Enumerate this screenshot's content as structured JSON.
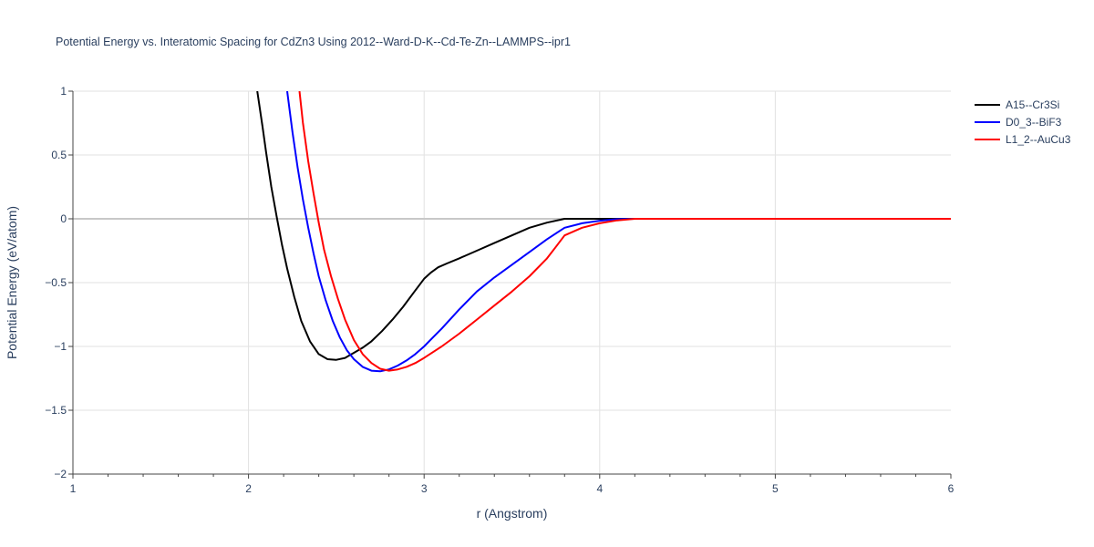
{
  "chart_data": {
    "type": "line",
    "title": "Potential Energy vs. Interatomic Spacing for CdZn3 Using 2012--Ward-D-K--Cd-Te-Zn--LAMMPS--ipr1",
    "xlabel": "r (Angstrom)",
    "ylabel": "Potential Energy (eV/atom)",
    "xlim": [
      1,
      6
    ],
    "ylim": [
      -2,
      1
    ],
    "x_ticks": [
      "1",
      "2",
      "3",
      "4",
      "5",
      "6"
    ],
    "y_ticks": [
      "1",
      "0.5",
      "0",
      "−0.5",
      "−1",
      "−1.5",
      "−2"
    ],
    "grid": true,
    "legend_position": "top-right",
    "series": [
      {
        "name": "A15--Cr3Si",
        "color": "#000000",
        "x": [
          2.05,
          2.08,
          2.1,
          2.13,
          2.16,
          2.19,
          2.22,
          2.26,
          2.3,
          2.35,
          2.4,
          2.45,
          2.5,
          2.55,
          2.6,
          2.65,
          2.7,
          2.76,
          2.82,
          2.88,
          2.94,
          3.0,
          3.04,
          3.08,
          3.13,
          3.2,
          3.3,
          3.4,
          3.5,
          3.6,
          3.7,
          3.8,
          3.86,
          3.95,
          4.05,
          4.2,
          6.0
        ],
        "y": [
          1.0,
          0.72,
          0.52,
          0.25,
          0.02,
          -0.2,
          -0.39,
          -0.61,
          -0.8,
          -0.96,
          -1.06,
          -1.1,
          -1.105,
          -1.09,
          -1.05,
          -1.01,
          -0.96,
          -0.88,
          -0.79,
          -0.69,
          -0.58,
          -0.47,
          -0.42,
          -0.38,
          -0.35,
          -0.31,
          -0.25,
          -0.19,
          -0.13,
          -0.07,
          -0.03,
          0.0,
          0.0,
          0.0,
          0.0,
          0.0,
          0.0
        ]
      },
      {
        "name": "D0_3--BiF3",
        "color": "#0000ff",
        "x": [
          2.22,
          2.25,
          2.28,
          2.31,
          2.34,
          2.37,
          2.4,
          2.44,
          2.48,
          2.52,
          2.56,
          2.6,
          2.65,
          2.7,
          2.75,
          2.8,
          2.85,
          2.9,
          2.95,
          3.0,
          3.05,
          3.1,
          3.2,
          3.3,
          3.4,
          3.5,
          3.6,
          3.7,
          3.8,
          3.9,
          4.0,
          4.1,
          4.2,
          6.0
        ],
        "y": [
          1.0,
          0.68,
          0.4,
          0.15,
          -0.07,
          -0.27,
          -0.45,
          -0.64,
          -0.8,
          -0.93,
          -1.03,
          -1.1,
          -1.16,
          -1.19,
          -1.195,
          -1.18,
          -1.15,
          -1.11,
          -1.06,
          -1.0,
          -0.93,
          -0.86,
          -0.71,
          -0.57,
          -0.46,
          -0.36,
          -0.26,
          -0.16,
          -0.07,
          -0.035,
          -0.015,
          -0.003,
          0.0,
          0.0
        ]
      },
      {
        "name": "L1_2--AuCu3",
        "color": "#ff0000",
        "x": [
          2.29,
          2.31,
          2.34,
          2.37,
          2.4,
          2.43,
          2.47,
          2.51,
          2.55,
          2.6,
          2.65,
          2.7,
          2.75,
          2.8,
          2.85,
          2.9,
          2.95,
          3.0,
          3.1,
          3.2,
          3.3,
          3.4,
          3.5,
          3.6,
          3.7,
          3.75,
          3.8,
          3.9,
          4.0,
          4.1,
          4.2,
          6.0
        ],
        "y": [
          1.0,
          0.75,
          0.45,
          0.2,
          -0.03,
          -0.24,
          -0.45,
          -0.63,
          -0.79,
          -0.95,
          -1.06,
          -1.13,
          -1.175,
          -1.19,
          -1.18,
          -1.16,
          -1.13,
          -1.09,
          -1.0,
          -0.9,
          -0.79,
          -0.68,
          -0.57,
          -0.45,
          -0.31,
          -0.22,
          -0.13,
          -0.07,
          -0.035,
          -0.012,
          0.0,
          0.0
        ]
      }
    ]
  }
}
